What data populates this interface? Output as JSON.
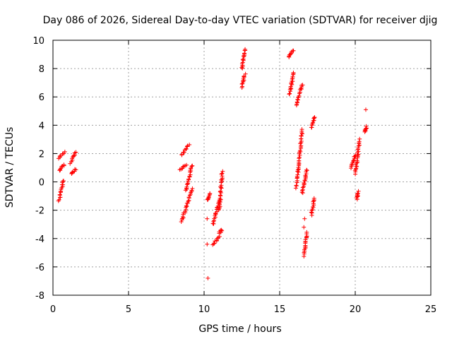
{
  "chart_data": {
    "type": "scatter",
    "title": "Day 086 of 2026, Sidereal Day-to-day VTEC variation (SDTVAR) for receiver djig",
    "xlabel": "GPS time / hours",
    "ylabel": "SDTVAR / TECUs",
    "xlim": [
      0,
      25
    ],
    "ylim": [
      -8,
      10
    ],
    "xticks": [
      0,
      5,
      10,
      15,
      20,
      25
    ],
    "yticks": [
      -8,
      -6,
      -4,
      -2,
      0,
      2,
      4,
      6,
      8,
      10
    ],
    "grid": true,
    "marker": "+",
    "color": "#ff0000",
    "segments": [
      {
        "x": [
          0.4,
          0.75
        ],
        "y": [
          1.7,
          2.1
        ]
      },
      {
        "x": [
          0.4,
          0.75
        ],
        "y": [
          0.8,
          1.2
        ]
      },
      {
        "x": [
          0.4,
          0.7
        ],
        "y": [
          -1.3,
          0.1
        ]
      },
      {
        "x": [
          1.15,
          1.5
        ],
        "y": [
          1.3,
          2.1
        ]
      },
      {
        "x": [
          1.2,
          1.5
        ],
        "y": [
          0.6,
          0.9
        ]
      },
      {
        "x": [
          8.5,
          9.0
        ],
        "y": [
          1.9,
          2.6
        ]
      },
      {
        "x": [
          8.4,
          8.8
        ],
        "y": [
          0.9,
          1.2
        ]
      },
      {
        "x": [
          8.8,
          9.2
        ],
        "y": [
          -0.6,
          1.2
        ]
      },
      {
        "x": [
          8.5,
          9.2
        ],
        "y": [
          -2.8,
          -0.5
        ]
      },
      {
        "x": [
          10.2,
          10.4
        ],
        "y": [
          -1.3,
          -0.8
        ]
      },
      {
        "x": [
          10.6,
          11.0
        ],
        "y": [
          -4.4,
          -3.9
        ]
      },
      {
        "x": [
          10.6,
          11.0
        ],
        "y": [
          -3.0,
          -1.3
        ]
      },
      {
        "x": [
          11.0,
          11.2
        ],
        "y": [
          -2.0,
          0.7
        ]
      },
      {
        "x": [
          11.0,
          11.2
        ],
        "y": [
          -3.6,
          -3.4
        ]
      },
      {
        "x": [
          12.5,
          12.7
        ],
        "y": [
          8.0,
          9.4
        ]
      },
      {
        "x": [
          12.5,
          12.7
        ],
        "y": [
          6.7,
          7.6
        ]
      },
      {
        "x": [
          15.6,
          15.9
        ],
        "y": [
          8.8,
          9.3
        ]
      },
      {
        "x": [
          15.65,
          15.95
        ],
        "y": [
          6.2,
          7.7
        ]
      },
      {
        "x": [
          16.1,
          16.5
        ],
        "y": [
          5.4,
          6.9
        ]
      },
      {
        "x": [
          16.1,
          16.5
        ],
        "y": [
          -0.4,
          3.7
        ]
      },
      {
        "x": [
          16.5,
          16.8
        ],
        "y": [
          -0.8,
          0.9
        ]
      },
      {
        "x": [
          16.6,
          16.8
        ],
        "y": [
          -5.2,
          -3.6
        ]
      },
      {
        "x": [
          17.1,
          17.3
        ],
        "y": [
          3.8,
          4.6
        ]
      },
      {
        "x": [
          17.1,
          17.3
        ],
        "y": [
          -2.3,
          -1.2
        ]
      },
      {
        "x": [
          19.7,
          20.0
        ],
        "y": [
          1.0,
          1.9
        ]
      },
      {
        "x": [
          20.0,
          20.3
        ],
        "y": [
          0.6,
          3.0
        ]
      },
      {
        "x": [
          20.1,
          20.2
        ],
        "y": [
          -1.2,
          -0.7
        ]
      },
      {
        "x": [
          20.6,
          20.75
        ],
        "y": [
          3.5,
          3.9
        ]
      }
    ],
    "outliers": [
      {
        "x": 10.25,
        "y": -6.8
      },
      {
        "x": 10.2,
        "y": -4.4
      },
      {
        "x": 10.2,
        "y": -2.6
      },
      {
        "x": 20.7,
        "y": 5.1
      },
      {
        "x": 16.65,
        "y": -2.6
      },
      {
        "x": 16.6,
        "y": -3.2
      }
    ]
  }
}
